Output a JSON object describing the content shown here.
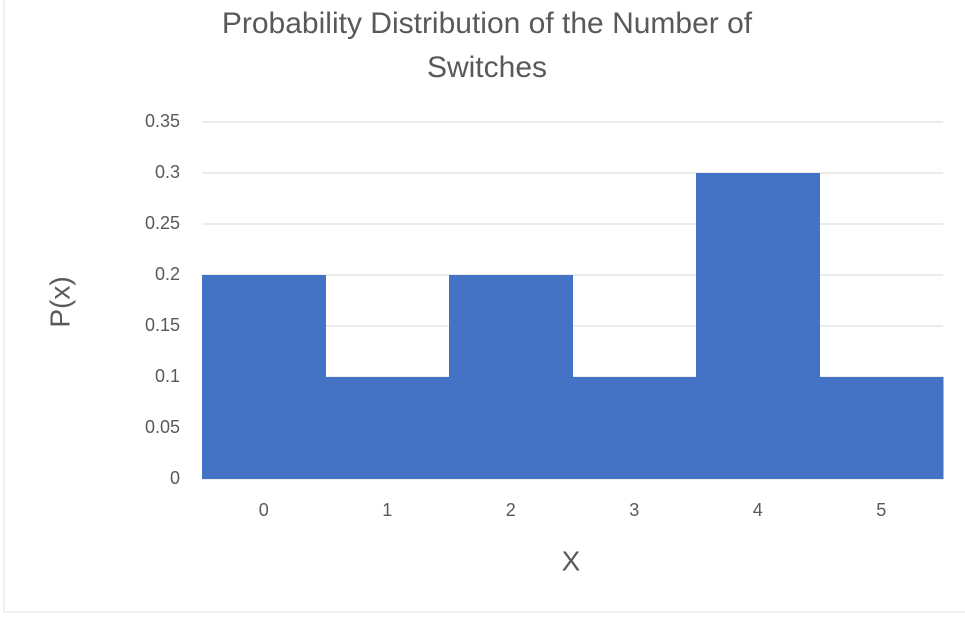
{
  "chart_data": {
    "type": "bar",
    "title": "Probability Distribution of the Number of Switches",
    "x_label": "X",
    "y_label": "P(x)",
    "categories": [
      "0",
      "1",
      "2",
      "3",
      "4",
      "5"
    ],
    "values": [
      0.2,
      0.1,
      0.2,
      0.1,
      0.3,
      0.1
    ],
    "color": "#4472c4",
    "ylim": [
      0,
      0.35
    ],
    "yticks": [
      0,
      0.05,
      0.1,
      0.15,
      0.2,
      0.25,
      0.3,
      0.35
    ],
    "grid": true
  }
}
